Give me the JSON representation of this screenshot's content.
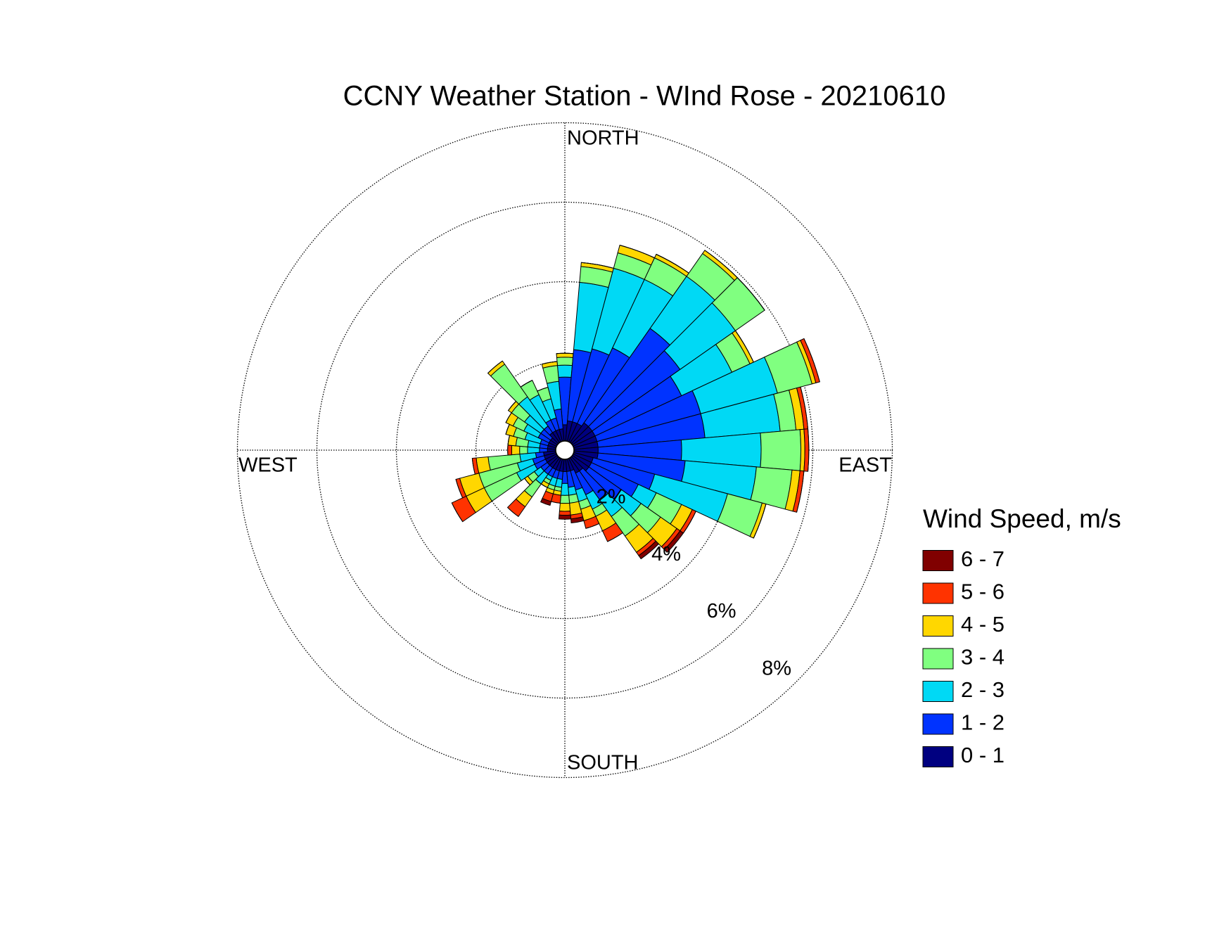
{
  "chart_data": {
    "type": "wind_rose",
    "title": "CCNY Weather Station - WInd Rose - 20210610",
    "direction_labels": {
      "north": "NORTH",
      "east": "EAST",
      "south": "SOUTH",
      "west": "WEST"
    },
    "legend_title": "Wind Speed, m/s",
    "categories": [
      null,
      null,
      null,
      null,
      null,
      null,
      null,
      null,
      null,
      null,
      null,
      null,
      null,
      null,
      null,
      null,
      null,
      null,
      null,
      null,
      null,
      null,
      null,
      null,
      null,
      null,
      null,
      null,
      null,
      null,
      null,
      null,
      null,
      null,
      null,
      null
    ],
    "rlim": [
      0,
      8
    ],
    "rticks": [
      {
        "value": 2,
        "label": "2%"
      },
      {
        "value": 4,
        "label": "4%"
      },
      {
        "value": 6,
        "label": "6%"
      },
      {
        "value": 8,
        "label": "8%"
      }
    ],
    "grid": true,
    "series": [
      {
        "name": "0 - 1",
        "color": "#000080",
        "values": [
          0.4,
          0.5,
          0.5,
          0.5,
          0.6,
          0.6,
          0.6,
          0.6,
          0.6,
          0.6,
          0.6,
          0.5,
          0.5,
          0.5,
          0.4,
          0.4,
          0.3,
          0.3,
          0.3,
          0.3,
          0.3,
          0.3,
          0.3,
          0.3,
          0.3,
          0.3,
          0.3,
          0.2,
          0.2,
          0.2,
          0.2,
          0.2,
          0.3,
          0.3,
          0.3,
          0.3
        ]
      },
      {
        "name": "1 - 2",
        "color": "#0033ff",
        "values": [
          1.2,
          1.8,
          1.9,
          2.1,
          2.9,
          2.7,
          2.4,
          2.7,
          2.7,
          2.1,
          2.2,
          1.6,
          1.3,
          1.0,
          0.9,
          0.6,
          0.5,
          0.4,
          0.3,
          0.2,
          0.2,
          0.2,
          0.2,
          0.2,
          0.3,
          0.3,
          0.2,
          0.2,
          0.2,
          0.2,
          0.3,
          0.3,
          0.2,
          0.3,
          0.3,
          0.5
        ]
      },
      {
        "name": "2 - 3",
        "color": "#00d9f5",
        "values": [
          0.3,
          1.7,
          2.1,
          1.9,
          1.6,
          1.7,
          1.4,
          2.0,
          1.9,
          2.0,
          1.8,
          1.9,
          0.5,
          0.6,
          0.5,
          0.4,
          0.3,
          0.2,
          0.3,
          0.2,
          0.2,
          0.1,
          0.3,
          0.2,
          0.5,
          0.4,
          0.4,
          0.3,
          0.3,
          0.4,
          0.4,
          0.5,
          0.9,
          0.7,
          0.5,
          0.7
        ]
      },
      {
        "name": "3 - 4",
        "color": "#80ff80",
        "values": [
          0.2,
          0.4,
          0.4,
          0.6,
          0.7,
          0.9,
          0.5,
          0.9,
          0.4,
          1.0,
          0.9,
          0.9,
          0.7,
          0.6,
          0.6,
          0.2,
          0.2,
          0.2,
          0.2,
          0.1,
          0.1,
          0.1,
          0.4,
          0.2,
          0.9,
          1.0,
          0.8,
          0.2,
          0.3,
          0.3,
          0.3,
          0.4,
          1.0,
          0.4,
          0.3,
          0.4
        ]
      },
      {
        "name": "4 - 5",
        "color": "#ffd700",
        "values": [
          0.1,
          0.1,
          0.2,
          0.1,
          0.1,
          0,
          0.1,
          0.1,
          0.2,
          0.1,
          0.2,
          0.1,
          0.3,
          0.5,
          0.5,
          0.4,
          0.3,
          0.3,
          0.2,
          0.1,
          0.1,
          0.1,
          0.3,
          0.1,
          0.5,
          0.5,
          0.3,
          0.2,
          0.2,
          0.2,
          0.2,
          0.1,
          0.1,
          0,
          0,
          0.1
        ]
      },
      {
        "name": "5 - 6",
        "color": "#ff3300",
        "values": [
          0,
          0,
          0,
          0,
          0,
          0,
          0,
          0.1,
          0.1,
          0.1,
          0.1,
          0,
          0.1,
          0.1,
          0.1,
          0.3,
          0.2,
          0.1,
          0.1,
          0.2,
          0.2,
          0,
          0.3,
          0,
          0.4,
          0.1,
          0.1,
          0.1,
          0,
          0,
          0,
          0,
          0,
          0,
          0,
          0
        ]
      },
      {
        "name": "6 - 7",
        "color": "#800000",
        "values": [
          0,
          0,
          0,
          0,
          0,
          0,
          0,
          0,
          0,
          0,
          0,
          0,
          0,
          0.1,
          0.1,
          0,
          0,
          0.1,
          0.1,
          0,
          0.1,
          0,
          0,
          0,
          0,
          0,
          0,
          0,
          0,
          0,
          0,
          0,
          0,
          0,
          0,
          0
        ]
      }
    ]
  }
}
